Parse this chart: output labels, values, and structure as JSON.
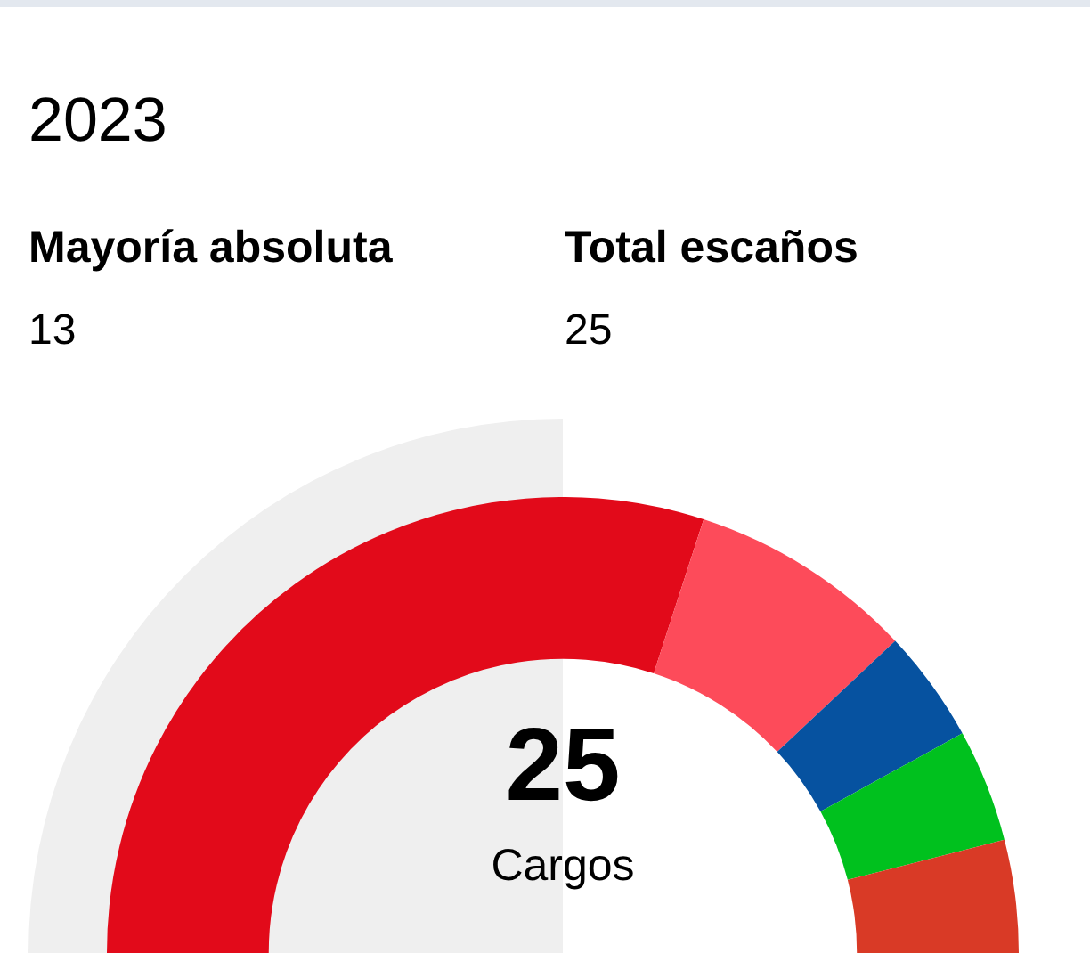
{
  "chart_data": {
    "type": "donut",
    "title": "2023",
    "categories": [
      null,
      null,
      null,
      null,
      null
    ],
    "values": [
      60,
      16,
      8,
      8,
      8
    ],
    "colors": [
      "#e20a1a",
      "#fd4b5a",
      "#0652a0",
      "#00c11e",
      "#d93a26"
    ],
    "annotations": [
      "Mayoría absoluta",
      "13",
      "Total escaños",
      "25",
      "25",
      "Cargos"
    ]
  }
}
